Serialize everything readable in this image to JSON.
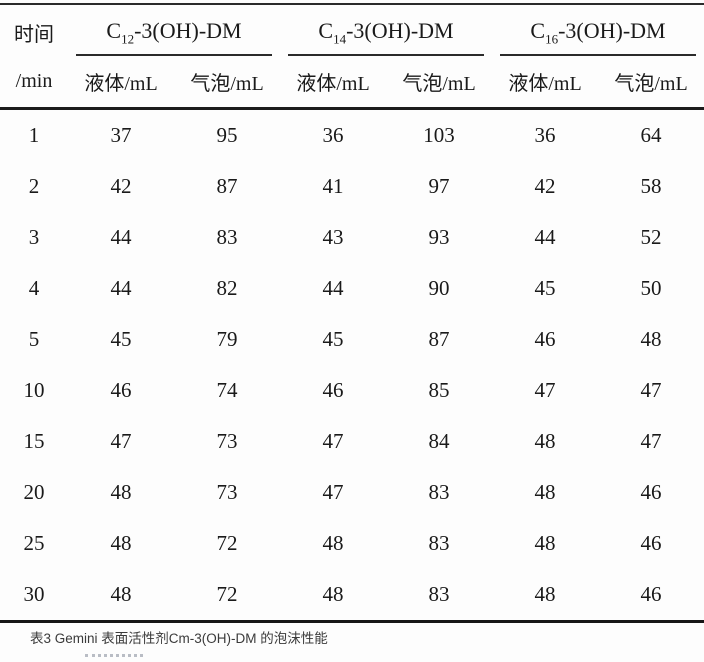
{
  "table": {
    "time_header": {
      "line1": "时间",
      "line2": "/min"
    },
    "groups": [
      {
        "base": "C",
        "subscript": "12",
        "rest": "-3(OH)-DM",
        "label": "C12-3(OH)-DM"
      },
      {
        "base": "C",
        "subscript": "14",
        "rest": "-3(OH)-DM",
        "label": "C14-3(OH)-DM"
      },
      {
        "base": "C",
        "subscript": "16",
        "rest": "-3(OH)-DM",
        "label": "C16-3(OH)-DM"
      }
    ],
    "sub_headers": [
      "液体/mL",
      "气泡/mL",
      "液体/mL",
      "气泡/mL",
      "液体/mL",
      "气泡/mL"
    ],
    "rows": [
      {
        "time": "1",
        "values": [
          "37",
          "95",
          "36",
          "103",
          "36",
          "64"
        ]
      },
      {
        "time": "2",
        "values": [
          "42",
          "87",
          "41",
          "97",
          "42",
          "58"
        ]
      },
      {
        "time": "3",
        "values": [
          "44",
          "83",
          "43",
          "93",
          "44",
          "52"
        ]
      },
      {
        "time": "4",
        "values": [
          "44",
          "82",
          "44",
          "90",
          "45",
          "50"
        ]
      },
      {
        "time": "5",
        "values": [
          "45",
          "79",
          "45",
          "87",
          "46",
          "48"
        ]
      },
      {
        "time": "10",
        "values": [
          "46",
          "74",
          "46",
          "85",
          "47",
          "47"
        ]
      },
      {
        "time": "15",
        "values": [
          "47",
          "73",
          "47",
          "84",
          "48",
          "47"
        ]
      },
      {
        "time": "20",
        "values": [
          "48",
          "73",
          "47",
          "83",
          "48",
          "46"
        ]
      },
      {
        "time": "25",
        "values": [
          "48",
          "72",
          "48",
          "83",
          "48",
          "46"
        ]
      },
      {
        "time": "30",
        "values": [
          "48",
          "72",
          "48",
          "83",
          "48",
          "46"
        ]
      }
    ]
  },
  "caption": "表3 Gemini 表面活性剂Cm-3(OH)-DM 的泡沫性能",
  "colors": {
    "text": "#1a1a1a",
    "rule": "#1c1c1c",
    "caption_text": "#3a3a3a",
    "background": "#ffffff"
  }
}
